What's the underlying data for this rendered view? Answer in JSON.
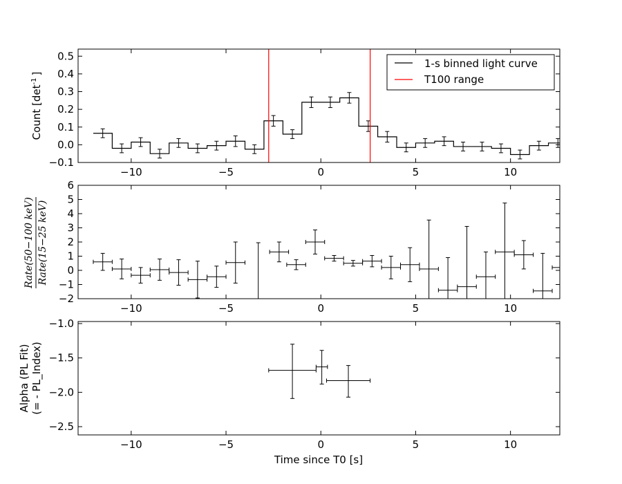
{
  "chart_data": [
    {
      "type": "line",
      "panel": "light-curve",
      "ylabel": "Count [det",
      "ylabel_sup": "-1",
      "ylabel_end": "]",
      "xlim": [
        -12.8,
        12.6
      ],
      "ylim": [
        -0.1,
        0.54
      ],
      "xticks": [
        -10,
        -5,
        0,
        5,
        10
      ],
      "xtick_labels": [
        "−10",
        "−5",
        "0",
        "5",
        "10"
      ],
      "yticks": [
        -0.1,
        0.0,
        0.1,
        0.2,
        0.3,
        0.4,
        0.5
      ],
      "ytick_labels": [
        "−0.1",
        "0.0",
        "0.1",
        "0.2",
        "0.3",
        "0.4",
        "0.5"
      ],
      "legend": {
        "placement": "top-right",
        "entries": [
          "1-s binned light curve",
          "T100 range"
        ]
      },
      "t100_range": [
        -2.75,
        2.6
      ],
      "series": [
        {
          "name": "1-s binned light curve",
          "color": "#000000",
          "x": [
            -11.5,
            -10.5,
            -9.5,
            -8.5,
            -7.5,
            -6.5,
            -5.5,
            -4.5,
            -3.5,
            -2.5,
            -1.5,
            -0.5,
            0.5,
            1.5,
            2.5,
            3.5,
            4.5,
            5.5,
            6.5,
            7.5,
            8.5,
            9.5,
            10.5,
            11.5,
            12.5
          ],
          "y": [
            0.065,
            -0.02,
            0.015,
            -0.05,
            0.01,
            -0.02,
            -0.005,
            0.02,
            -0.025,
            0.135,
            0.06,
            0.24,
            0.24,
            0.265,
            0.105,
            0.045,
            -0.015,
            0.01,
            0.02,
            -0.01,
            -0.01,
            -0.02,
            -0.055,
            -0.005,
            0.01
          ],
          "yerr": [
            0.025,
            0.025,
            0.025,
            0.025,
            0.025,
            0.025,
            0.025,
            0.03,
            0.025,
            0.03,
            0.025,
            0.03,
            0.03,
            0.03,
            0.03,
            0.03,
            0.025,
            0.025,
            0.025,
            0.025,
            0.025,
            0.025,
            0.025,
            0.025,
            0.025
          ]
        },
        {
          "name": "T100 range",
          "color": "#ff0000"
        }
      ]
    },
    {
      "type": "scatter",
      "panel": "hardness-ratio",
      "ylabel_numerator": "Rate(50−100 keV)",
      "ylabel_denominator": "Rate(15−25 keV)",
      "xlim": [
        -12.8,
        12.6
      ],
      "ylim": [
        -2,
        6
      ],
      "xticks": [
        -10,
        -5,
        0,
        5,
        10
      ],
      "xtick_labels": [
        "−10",
        "−5",
        "0",
        "5",
        "10"
      ],
      "yticks": [
        -2,
        -1,
        0,
        1,
        2,
        3,
        4,
        5,
        6
      ],
      "ytick_labels": [
        "−2",
        "−1",
        "0",
        "1",
        "2",
        "3",
        "4",
        "5",
        "6"
      ],
      "points": [
        {
          "x": -11.5,
          "xerr": 0.5,
          "y": 0.6,
          "yerr_low": 0.6,
          "yerr_high": 0.6
        },
        {
          "x": -10.5,
          "xerr": 0.5,
          "y": 0.1,
          "yerr_low": 0.7,
          "yerr_high": 0.7
        },
        {
          "x": -9.5,
          "xerr": 0.5,
          "y": -0.35,
          "yerr_low": 0.55,
          "yerr_high": 0.55
        },
        {
          "x": -8.5,
          "xerr": 0.5,
          "y": 0.05,
          "yerr_low": 0.75,
          "yerr_high": 0.75
        },
        {
          "x": -7.5,
          "xerr": 0.5,
          "y": -0.15,
          "yerr_low": 0.9,
          "yerr_high": 0.9
        },
        {
          "x": -6.5,
          "xerr": 0.5,
          "y": -0.65,
          "yerr_low": 1.3,
          "yerr_high": 1.3
        },
        {
          "x": -5.5,
          "xerr": 0.5,
          "y": -0.45,
          "yerr_low": 0.75,
          "yerr_high": 0.75
        },
        {
          "x": -4.5,
          "xerr": 0.5,
          "y": 0.55,
          "yerr_low": 1.45,
          "yerr_high": 1.45
        },
        {
          "x": -3.3,
          "xerr": 0.0,
          "y": -0.05,
          "yerr_low": 2.0,
          "yerr_high": 2.0
        },
        {
          "x": -2.2,
          "xerr": 0.5,
          "y": 1.3,
          "yerr_low": 0.7,
          "yerr_high": 0.7
        },
        {
          "x": -1.3,
          "xerr": 0.5,
          "y": 0.4,
          "yerr_low": 0.35,
          "yerr_high": 0.35
        },
        {
          "x": -0.3,
          "xerr": 0.5,
          "y": 2.0,
          "yerr_low": 0.85,
          "yerr_high": 0.85
        },
        {
          "x": 0.7,
          "xerr": 0.5,
          "y": 0.85,
          "yerr_low": 0.2,
          "yerr_high": 0.2
        },
        {
          "x": 1.7,
          "xerr": 0.5,
          "y": 0.5,
          "yerr_low": 0.2,
          "yerr_high": 0.2
        },
        {
          "x": 2.7,
          "xerr": 0.5,
          "y": 0.65,
          "yerr_low": 0.4,
          "yerr_high": 0.4
        },
        {
          "x": 3.7,
          "xerr": 0.5,
          "y": 0.2,
          "yerr_low": 0.8,
          "yerr_high": 0.8
        },
        {
          "x": 4.7,
          "xerr": 0.5,
          "y": 0.4,
          "yerr_low": 1.2,
          "yerr_high": 1.2
        },
        {
          "x": 5.7,
          "xerr": 0.5,
          "y": 0.1,
          "yerr_low": 2.1,
          "yerr_high": 3.45
        },
        {
          "x": 6.7,
          "xerr": 0.5,
          "y": -1.4,
          "yerr_low": 0.6,
          "yerr_high": 2.3
        },
        {
          "x": 7.7,
          "xerr": 0.5,
          "y": -1.15,
          "yerr_low": 0.85,
          "yerr_high": 4.25
        },
        {
          "x": 8.7,
          "xerr": 0.5,
          "y": -0.45,
          "yerr_low": 1.55,
          "yerr_high": 1.75
        },
        {
          "x": 9.7,
          "xerr": 0.5,
          "y": 1.3,
          "yerr_low": 3.3,
          "yerr_high": 3.45
        },
        {
          "x": 10.7,
          "xerr": 0.5,
          "y": 1.1,
          "yerr_low": 1.0,
          "yerr_high": 1.0
        },
        {
          "x": 11.7,
          "xerr": 0.5,
          "y": -1.45,
          "yerr_low": 0.55,
          "yerr_high": 2.65
        },
        {
          "x": 12.7,
          "xerr": 0.5,
          "y": 0.2,
          "yerr_low": 0.0,
          "yerr_high": 0.0
        }
      ]
    },
    {
      "type": "scatter",
      "panel": "photon-index",
      "ylabel_line1": "Alpha (PL Fit)",
      "ylabel_line2": "(= - PL_Index)",
      "xlabel": "Time since T0 [s]",
      "xlim": [
        -12.8,
        12.6
      ],
      "ylim": [
        -2.62,
        -0.97
      ],
      "xticks": [
        -10,
        -5,
        0,
        5,
        10
      ],
      "xtick_labels": [
        "−10",
        "−5",
        "0",
        "5",
        "10"
      ],
      "yticks": [
        -2.5,
        -2.0,
        -1.5,
        -1.0
      ],
      "ytick_labels": [
        "−2.5",
        "−2.0",
        "−1.5",
        "−1.0"
      ],
      "points": [
        {
          "x": -1.5,
          "xerr": 1.25,
          "y": -1.68,
          "yerr_low": 0.41,
          "yerr_high": 0.38
        },
        {
          "x": 0.05,
          "xerr": 0.3,
          "y": -1.63,
          "yerr_low": 0.25,
          "yerr_high": 0.24
        },
        {
          "x": 1.45,
          "xerr": 1.15,
          "y": -1.83,
          "yerr_low": 0.24,
          "yerr_high": 0.22
        }
      ]
    }
  ]
}
